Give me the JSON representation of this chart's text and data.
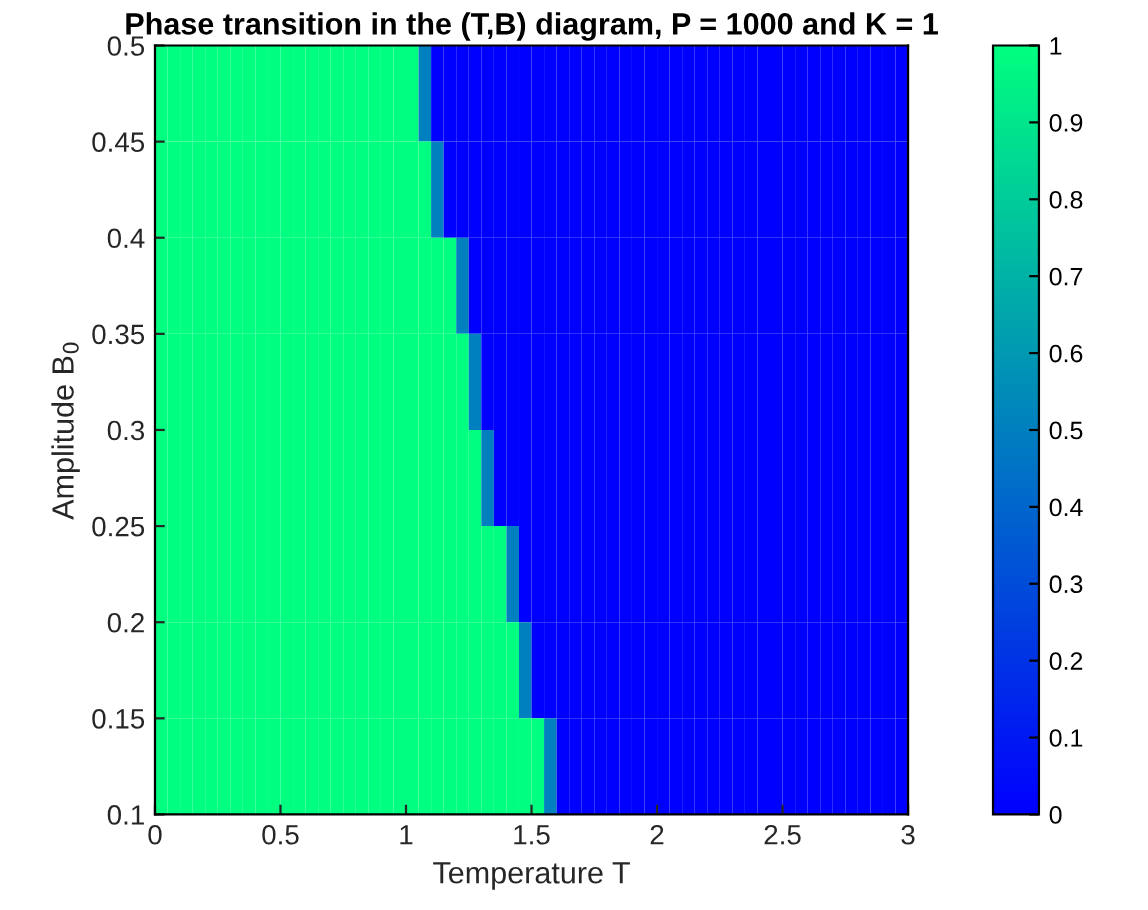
{
  "chart_data": {
    "type": "heatmap",
    "title": "Phase transition in the (T,B) diagram, P = 1000 and K = 1",
    "xlabel": "Temperature T",
    "ylabel": "Amplitude B$_{0}$",
    "xlim": [
      0,
      3
    ],
    "ylim": [
      0.1,
      0.5
    ],
    "xticks": [
      0,
      0.5,
      1,
      1.5,
      2,
      2.5,
      3
    ],
    "yticks": [
      0.1,
      0.15,
      0.2,
      0.25,
      0.3,
      0.35,
      0.4,
      0.45,
      0.5
    ],
    "clim": [
      0,
      1
    ],
    "cticks": [
      0,
      0.1,
      0.2,
      0.3,
      0.4,
      0.5,
      0.6,
      0.7,
      0.8,
      0.9,
      1
    ],
    "grid": false,
    "cells": [
      [
        1,
        1,
        1,
        1,
        1,
        1,
        1,
        1,
        1,
        1,
        1,
        1,
        1,
        1,
        1,
        1,
        1,
        1,
        1,
        1,
        1,
        0.5,
        0,
        0,
        0,
        0,
        0,
        0,
        0,
        0,
        0,
        0,
        0,
        0,
        0,
        0,
        0,
        0,
        0,
        0,
        0,
        0,
        0,
        0,
        0,
        0,
        0,
        0,
        0,
        0,
        0,
        0,
        0,
        0,
        0,
        0,
        0,
        0,
        0,
        0
      ],
      [
        1,
        1,
        1,
        1,
        1,
        1,
        1,
        1,
        1,
        1,
        1,
        1,
        1,
        1,
        1,
        1,
        1,
        1,
        1,
        1,
        1,
        1,
        0.5,
        0,
        0,
        0,
        0,
        0,
        0,
        0,
        0,
        0,
        0,
        0,
        0,
        0,
        0,
        0,
        0,
        0,
        0,
        0,
        0,
        0,
        0,
        0,
        0,
        0,
        0,
        0,
        0,
        0,
        0,
        0,
        0,
        0,
        0,
        0,
        0,
        0
      ],
      [
        1,
        1,
        1,
        1,
        1,
        1,
        1,
        1,
        1,
        1,
        1,
        1,
        1,
        1,
        1,
        1,
        1,
        1,
        1,
        1,
        1,
        1,
        1,
        1,
        0.5,
        0,
        0,
        0,
        0,
        0,
        0,
        0,
        0,
        0,
        0,
        0,
        0,
        0,
        0,
        0,
        0,
        0,
        0,
        0,
        0,
        0,
        0,
        0,
        0,
        0,
        0,
        0,
        0,
        0,
        0,
        0,
        0,
        0,
        0,
        0
      ],
      [
        1,
        1,
        1,
        1,
        1,
        1,
        1,
        1,
        1,
        1,
        1,
        1,
        1,
        1,
        1,
        1,
        1,
        1,
        1,
        1,
        1,
        1,
        1,
        1,
        1,
        0.5,
        0,
        0,
        0,
        0,
        0,
        0,
        0,
        0,
        0,
        0,
        0,
        0,
        0,
        0,
        0,
        0,
        0,
        0,
        0,
        0,
        0,
        0,
        0,
        0,
        0,
        0,
        0,
        0,
        0,
        0,
        0,
        0,
        0,
        0
      ],
      [
        1,
        1,
        1,
        1,
        1,
        1,
        1,
        1,
        1,
        1,
        1,
        1,
        1,
        1,
        1,
        1,
        1,
        1,
        1,
        1,
        1,
        1,
        1,
        1,
        1,
        1,
        0.5,
        0,
        0,
        0,
        0,
        0,
        0,
        0,
        0,
        0,
        0,
        0,
        0,
        0,
        0,
        0,
        0,
        0,
        0,
        0,
        0,
        0,
        0,
        0,
        0,
        0,
        0,
        0,
        0,
        0,
        0,
        0,
        0,
        0
      ],
      [
        1,
        1,
        1,
        1,
        1,
        1,
        1,
        1,
        1,
        1,
        1,
        1,
        1,
        1,
        1,
        1,
        1,
        1,
        1,
        1,
        1,
        1,
        1,
        1,
        1,
        1,
        1,
        1,
        0.5,
        0,
        0,
        0,
        0,
        0,
        0,
        0,
        0,
        0,
        0,
        0,
        0,
        0,
        0,
        0,
        0,
        0,
        0,
        0,
        0,
        0,
        0,
        0,
        0,
        0,
        0,
        0,
        0,
        0,
        0,
        0
      ],
      [
        1,
        1,
        1,
        1,
        1,
        1,
        1,
        1,
        1,
        1,
        1,
        1,
        1,
        1,
        1,
        1,
        1,
        1,
        1,
        1,
        1,
        1,
        1,
        1,
        1,
        1,
        1,
        1,
        1,
        0.5,
        0,
        0,
        0,
        0,
        0,
        0,
        0,
        0,
        0,
        0,
        0,
        0,
        0,
        0,
        0,
        0,
        0,
        0,
        0,
        0,
        0,
        0,
        0,
        0,
        0,
        0,
        0,
        0,
        0,
        0
      ],
      [
        1,
        1,
        1,
        1,
        1,
        1,
        1,
        1,
        1,
        1,
        1,
        1,
        1,
        1,
        1,
        1,
        1,
        1,
        1,
        1,
        1,
        1,
        1,
        1,
        1,
        1,
        1,
        1,
        1,
        1,
        1,
        0.5,
        0,
        0,
        0,
        0,
        0,
        0,
        0,
        0,
        0,
        0,
        0,
        0,
        0,
        0,
        0,
        0,
        0,
        0,
        0,
        0,
        0,
        0,
        0,
        0,
        0,
        0,
        0,
        0
      ]
    ]
  }
}
